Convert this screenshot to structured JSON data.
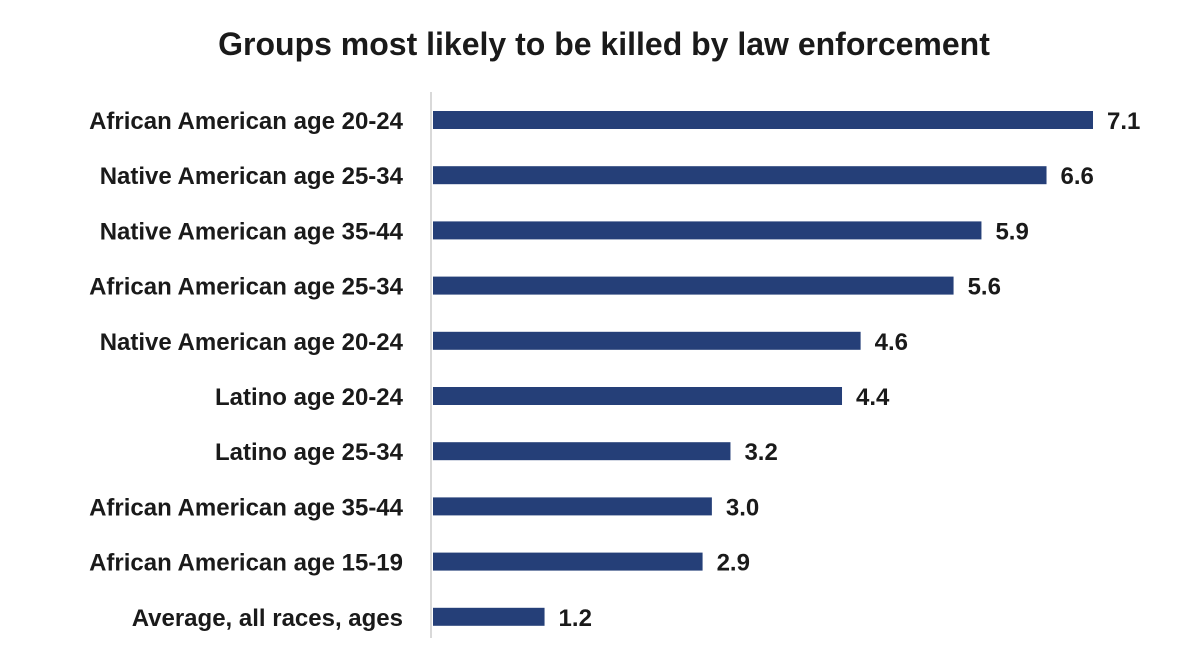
{
  "chart_data": {
    "type": "bar",
    "orientation": "horizontal",
    "title": "Groups most likely to be killed by law enforcement",
    "xlabel": "",
    "ylabel": "",
    "categories": [
      "African American age 20-24",
      "Native American age 25-34",
      "Native American age 35-44",
      "African American age 25-34",
      "Native American age 20-24",
      "Latino age 20-24",
      "Latino age 25-34",
      "African American age 35-44",
      "African American age 15-19",
      "Average, all races, ages"
    ],
    "values": [
      7.1,
      6.6,
      5.9,
      5.6,
      4.6,
      4.4,
      3.2,
      3.0,
      2.9,
      1.2
    ],
    "value_labels": [
      "7.1",
      "6.6",
      "5.9",
      "5.6",
      "4.6",
      "4.4",
      "3.2",
      "3.0",
      "2.9",
      "1.2"
    ],
    "xlim": [
      0,
      7.1
    ],
    "grid": false,
    "legend": "none",
    "bar_color": "#253f78",
    "axis_color": "#d9d9d9",
    "text_color": "#1a1a1a"
  }
}
